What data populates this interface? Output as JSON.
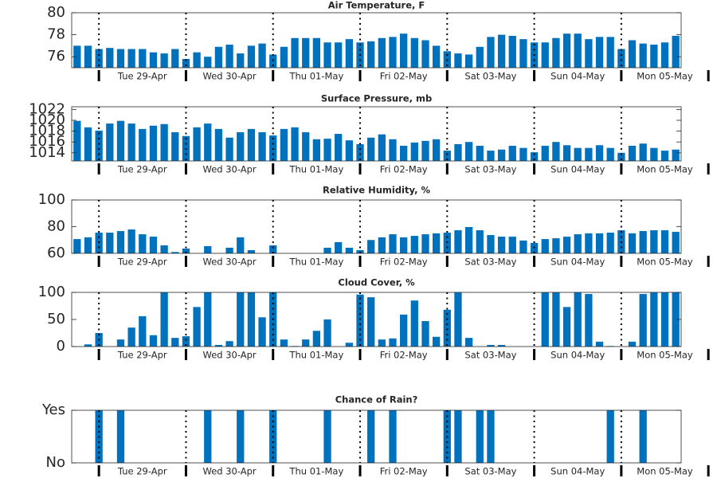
{
  "day_labels": [
    "Tue 29-Apr",
    "Wed 30-Apr",
    "Thu 01-May",
    "Fri 02-May",
    "Sat 03-May",
    "Sun 04-May",
    "Mon 05-May"
  ],
  "chart_data": [
    {
      "type": "bar",
      "title": "Air Temperature, F",
      "color": "#0072bd",
      "ylim": [
        75,
        80
      ],
      "yticks": [
        76,
        78,
        80
      ],
      "values": [
        77.0,
        77.0,
        76.7,
        76.8,
        76.7,
        76.7,
        76.7,
        76.4,
        76.3,
        76.7,
        75.8,
        76.4,
        76.0,
        76.9,
        77.1,
        76.3,
        77.0,
        77.2,
        76.2,
        76.9,
        77.7,
        77.7,
        77.7,
        77.3,
        77.3,
        77.6,
        77.3,
        77.4,
        77.7,
        77.8,
        78.1,
        77.7,
        77.5,
        77.0,
        76.5,
        76.3,
        76.2,
        76.9,
        77.8,
        78.0,
        77.9,
        77.6,
        77.3,
        77.3,
        77.7,
        78.1,
        78.1,
        77.6,
        77.8,
        77.8,
        76.7,
        77.5,
        77.2,
        77.1,
        77.3,
        77.9
      ]
    },
    {
      "type": "bar",
      "title": "Surface Pressure, mb",
      "color": "#0072bd",
      "ylim": [
        1012.5,
        1022.5
      ],
      "yticks": [
        1014,
        1016,
        1018,
        1020,
        1022
      ],
      "values": [
        1019.9,
        1018.7,
        1018.1,
        1019.4,
        1019.9,
        1019.4,
        1018.4,
        1019.0,
        1019.3,
        1017.8,
        1017.1,
        1018.7,
        1019.4,
        1018.4,
        1016.8,
        1017.8,
        1018.4,
        1017.8,
        1017.2,
        1018.4,
        1018.7,
        1017.8,
        1016.5,
        1016.6,
        1017.5,
        1016.3,
        1015.6,
        1016.8,
        1017.4,
        1016.5,
        1015.3,
        1015.9,
        1016.2,
        1016.5,
        1014.4,
        1015.6,
        1016.0,
        1015.3,
        1014.4,
        1014.6,
        1015.3,
        1014.9,
        1014.1,
        1015.3,
        1016.0,
        1015.4,
        1014.9,
        1014.9,
        1015.4,
        1014.9,
        1014.0,
        1015.3,
        1015.7,
        1014.9,
        1014.4,
        1014.6
      ]
    },
    {
      "type": "bar",
      "title": "Relative Humidity, %",
      "color": "#0072bd",
      "ylim": [
        60,
        100
      ],
      "yticks": [
        60,
        80,
        100
      ],
      "values": [
        70.7,
        72,
        75.5,
        75.5,
        76.7,
        77.9,
        74.3,
        72.5,
        66,
        61,
        63.6,
        60,
        65.4,
        60,
        64.2,
        72,
        62.4,
        60,
        66,
        60,
        60,
        60,
        60,
        64.2,
        68.4,
        64.2,
        62.4,
        70,
        72,
        74.3,
        72,
        73.1,
        74.3,
        75,
        75.5,
        77.3,
        79.7,
        77.3,
        73.7,
        72.5,
        72.5,
        69.6,
        67.8,
        70.7,
        71.3,
        72.5,
        74.3,
        75,
        75,
        75.5,
        77.3,
        75,
        76.7,
        77.3,
        77.3,
        76.1
      ]
    },
    {
      "type": "bar",
      "title": "Cloud Cover, %",
      "color": "#0072bd",
      "ylim": [
        0,
        100
      ],
      "yticks": [
        0,
        50,
        100
      ],
      "values": [
        0,
        4,
        25,
        0,
        13,
        35,
        56,
        21,
        100,
        16,
        19,
        73,
        100,
        3,
        10,
        100,
        100,
        54,
        100,
        13,
        1,
        13,
        29,
        50,
        0,
        7,
        96,
        91,
        13,
        15,
        59,
        85,
        47,
        18,
        68,
        100,
        16,
        0,
        3,
        3,
        0,
        0,
        0,
        100,
        100,
        73,
        100,
        97,
        9,
        1,
        0,
        9,
        97,
        100,
        100,
        100
      ]
    },
    {
      "type": "bar",
      "title": "Chance of Rain?",
      "color": "#0072bd",
      "ylim": [
        0,
        1
      ],
      "yticks": [
        {
          "value": 0,
          "label": "No"
        },
        {
          "value": 1,
          "label": "Yes"
        }
      ],
      "values": [
        0,
        0,
        1,
        0,
        1,
        0,
        0,
        0,
        0,
        0,
        0,
        0,
        1,
        0,
        0,
        1,
        0,
        0,
        1,
        0,
        0,
        0,
        0,
        1,
        0,
        0,
        0,
        1,
        0,
        1,
        0,
        0,
        0,
        0,
        1,
        1,
        0,
        1,
        1,
        0,
        0,
        0,
        0,
        0,
        0,
        0,
        0,
        0,
        0,
        1,
        0,
        0,
        1,
        0,
        0,
        0
      ]
    }
  ]
}
